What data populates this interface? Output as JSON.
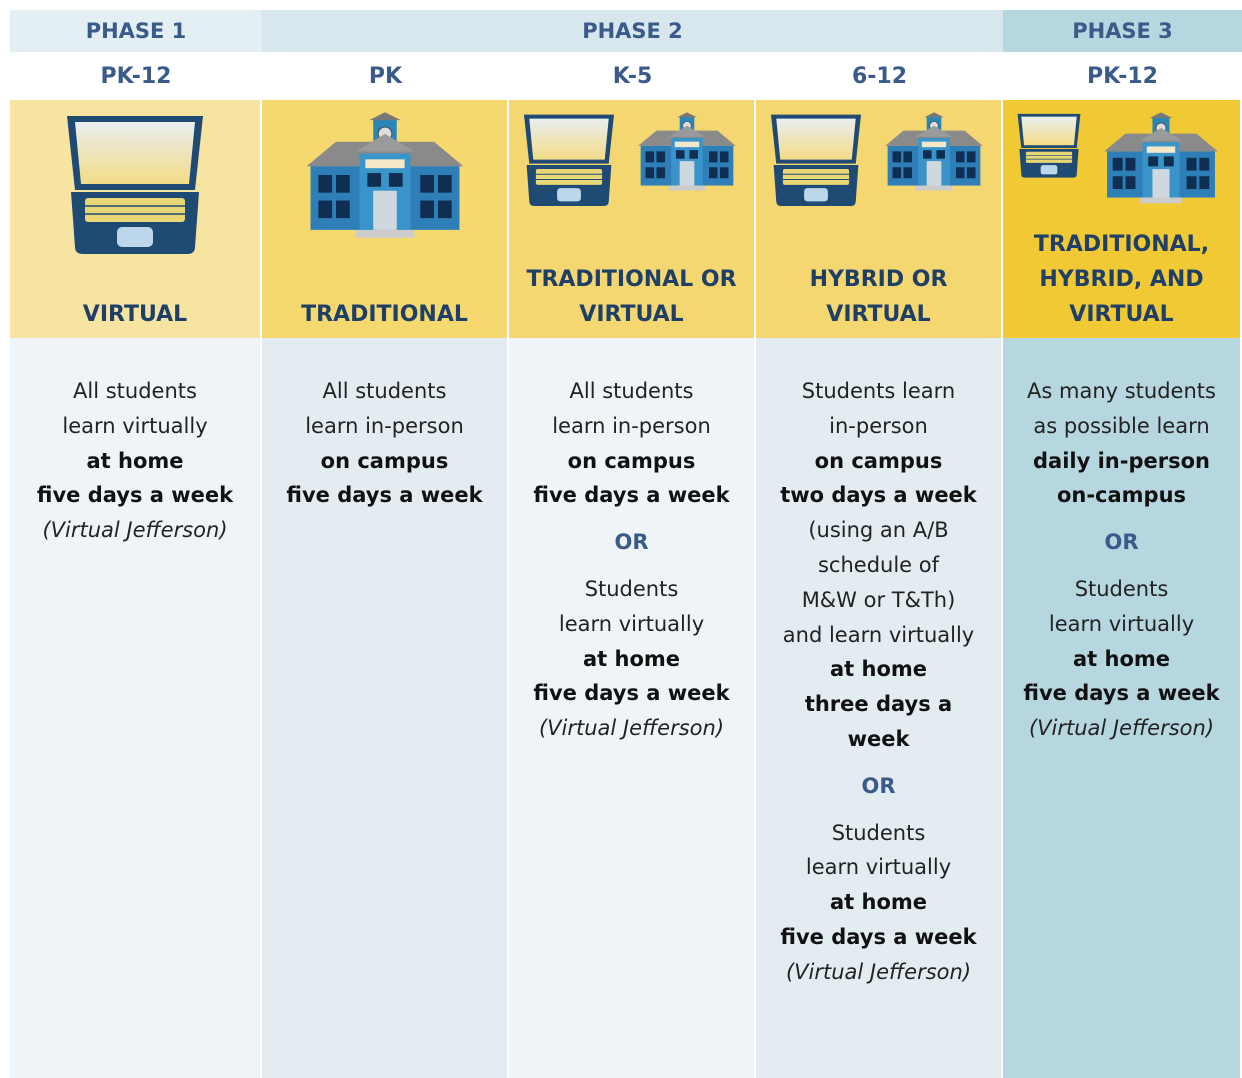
{
  "phases": [
    "PHASE 1",
    "PHASE 2",
    "PHASE 3"
  ],
  "columns": [
    {
      "grade": "PK-12",
      "mode": "VIRTUAL",
      "description": [
        {
          "text": "All students",
          "style": "normal"
        },
        {
          "text": "learn virtually",
          "style": "normal"
        },
        {
          "text": "at home",
          "style": "bold"
        },
        {
          "text": "five days a week",
          "style": "bold"
        },
        {
          "text": "(Virtual Jefferson)",
          "style": "italic"
        }
      ]
    },
    {
      "grade": "PK",
      "mode": "TRADITIONAL",
      "description": [
        {
          "text": "All students",
          "style": "normal"
        },
        {
          "text": "learn in-person",
          "style": "normal"
        },
        {
          "text": "on campus",
          "style": "bold"
        },
        {
          "text": "five days a week",
          "style": "bold"
        }
      ]
    },
    {
      "grade": "K-5",
      "mode": "TRADITIONAL OR VIRTUAL",
      "description": [
        {
          "text": "All students",
          "style": "normal"
        },
        {
          "text": "learn in-person",
          "style": "normal"
        },
        {
          "text": "on campus",
          "style": "bold"
        },
        {
          "text": "five days a week",
          "style": "bold"
        },
        {
          "text": "OR",
          "style": "or"
        },
        {
          "text": "Students",
          "style": "normal"
        },
        {
          "text": "learn virtually",
          "style": "normal"
        },
        {
          "text": "at home",
          "style": "bold"
        },
        {
          "text": "five days a week",
          "style": "bold"
        },
        {
          "text": "(Virtual Jefferson)",
          "style": "italic"
        }
      ]
    },
    {
      "grade": "6-12",
      "mode": "HYBRID OR VIRTUAL",
      "description": [
        {
          "text": "Students learn",
          "style": "normal"
        },
        {
          "text": "in-person",
          "style": "normal"
        },
        {
          "text": "on campus",
          "style": "bold"
        },
        {
          "text": "two days a week",
          "style": "bold"
        },
        {
          "text": "(using an A/B",
          "style": "normal"
        },
        {
          "text": "schedule of",
          "style": "normal"
        },
        {
          "text": "M&W or T&Th)",
          "style": "normal"
        },
        {
          "text": "and learn virtually",
          "style": "normal"
        },
        {
          "text": "at home",
          "style": "bold"
        },
        {
          "text": "three days a",
          "style": "bold"
        },
        {
          "text": "week",
          "style": "bold"
        },
        {
          "text": "OR",
          "style": "or"
        },
        {
          "text": "Students",
          "style": "normal"
        },
        {
          "text": "learn virtually",
          "style": "normal"
        },
        {
          "text": "at home",
          "style": "bold"
        },
        {
          "text": "five days a week",
          "style": "bold"
        },
        {
          "text": "(Virtual Jefferson)",
          "style": "italic"
        }
      ]
    },
    {
      "grade": "PK-12",
      "mode": "TRADITIONAL, HYBRID, AND VIRTUAL",
      "description": [
        {
          "text": "As many students",
          "style": "normal"
        },
        {
          "text": "as possible learn",
          "style": "normal"
        },
        {
          "text": "daily in-person",
          "style": "bold"
        },
        {
          "text": "on-campus",
          "style": "bold"
        },
        {
          "text": "OR",
          "style": "or"
        },
        {
          "text": "Students",
          "style": "normal"
        },
        {
          "text": "learn virtually",
          "style": "normal"
        },
        {
          "text": "at home",
          "style": "bold"
        },
        {
          "text": "five days a week",
          "style": "bold"
        },
        {
          "text": "(Virtual Jefferson)",
          "style": "italic"
        }
      ]
    }
  ]
}
